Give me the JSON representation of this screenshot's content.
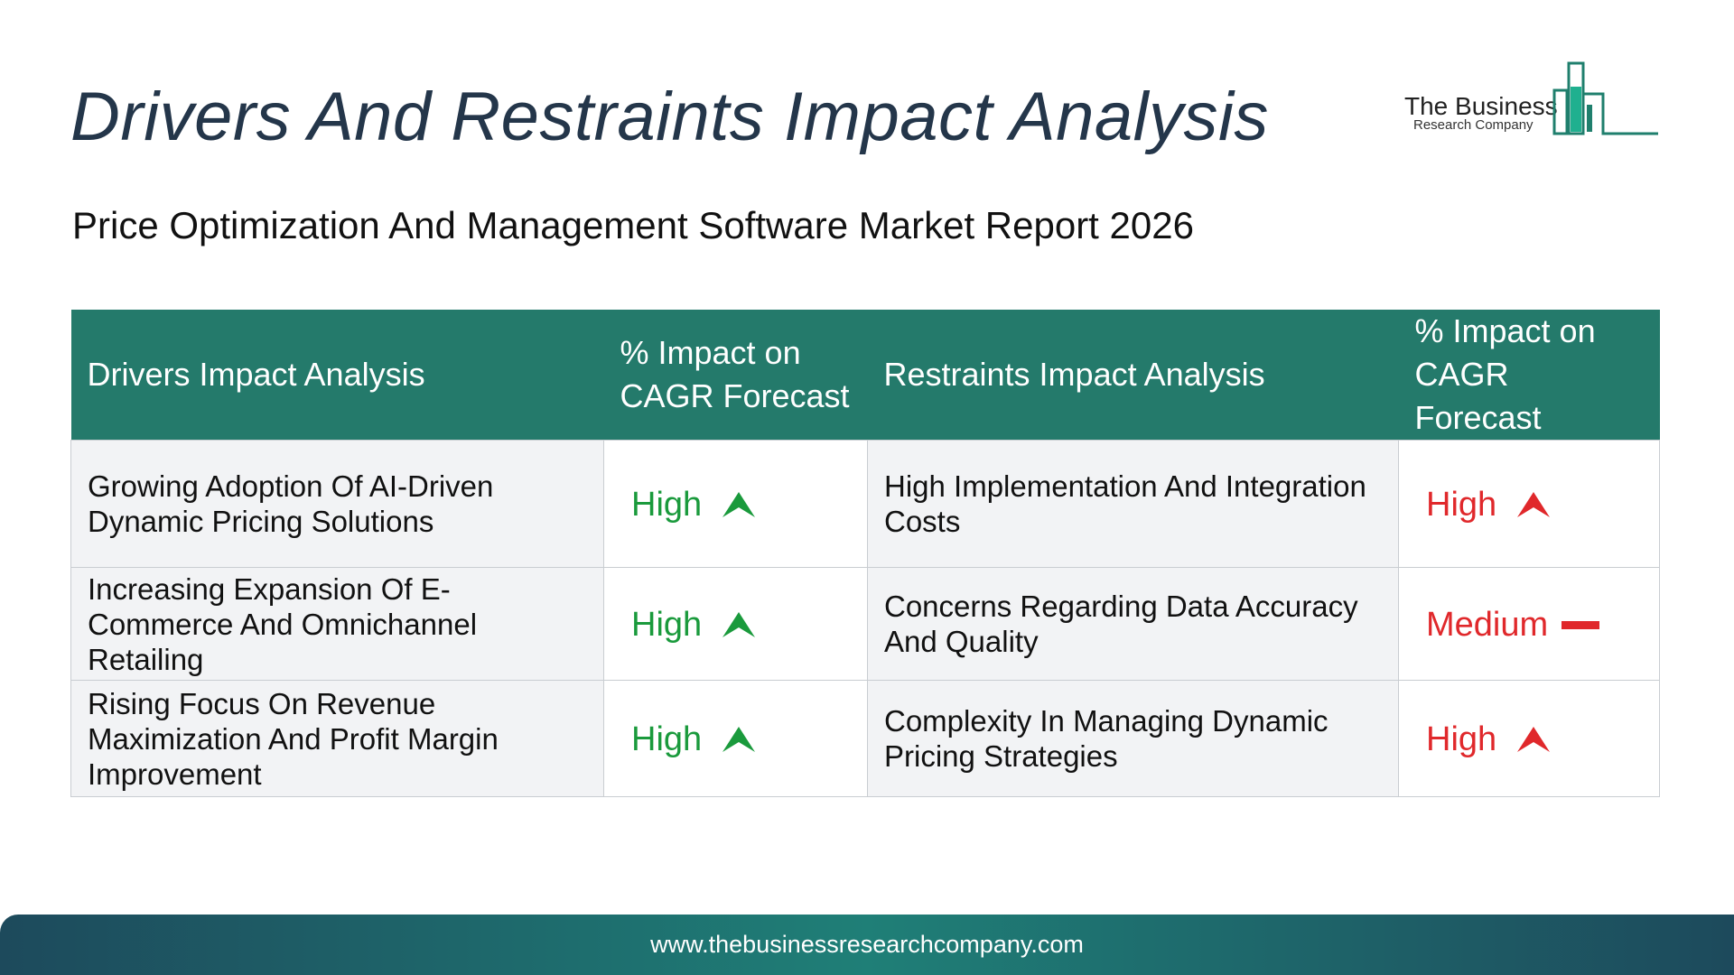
{
  "header": {
    "title": "Drivers And Restraints Impact Analysis",
    "subtitle": "Price Optimization And Management Software Market Report 2026"
  },
  "logo": {
    "line1": "The Business",
    "line2": "Research Company",
    "color": "#1f9a7a"
  },
  "table": {
    "headers": {
      "drivers": "Drivers Impact Analysis",
      "drivers_impact": "% Impact on CAGR Forecast",
      "restraints": "Restraints Impact Analysis",
      "restraints_impact": "% Impact on CAGR Forecast"
    },
    "rows": [
      {
        "driver": "Growing Adoption Of AI-Driven Dynamic Pricing Solutions",
        "driver_impact": "High",
        "driver_icon": "up-arrow-icon",
        "restraint": "High Implementation And Integration Costs",
        "restraint_impact": "High",
        "restraint_icon": "up-arrow-icon"
      },
      {
        "driver": "Increasing Expansion Of E-Commerce And Omnichannel Retailing",
        "driver_impact": "High",
        "driver_icon": "up-arrow-icon",
        "restraint": "Concerns Regarding Data Accuracy And Quality",
        "restraint_impact": "Medium",
        "restraint_icon": "dash-icon"
      },
      {
        "driver": "Rising Focus On Revenue Maximization And Profit Margin Improvement",
        "driver_impact": "High",
        "driver_icon": "up-arrow-icon",
        "restraint": "Complexity In Managing Dynamic Pricing Strategies",
        "restraint_impact": "High",
        "restraint_icon": "up-arrow-icon"
      }
    ],
    "colors": {
      "header_bg": "#247a6b",
      "driver_level": "#1a9a3c",
      "restraint_level": "#e0282b"
    }
  },
  "footer": {
    "url": "www.thebusinessresearchcompany.com"
  }
}
